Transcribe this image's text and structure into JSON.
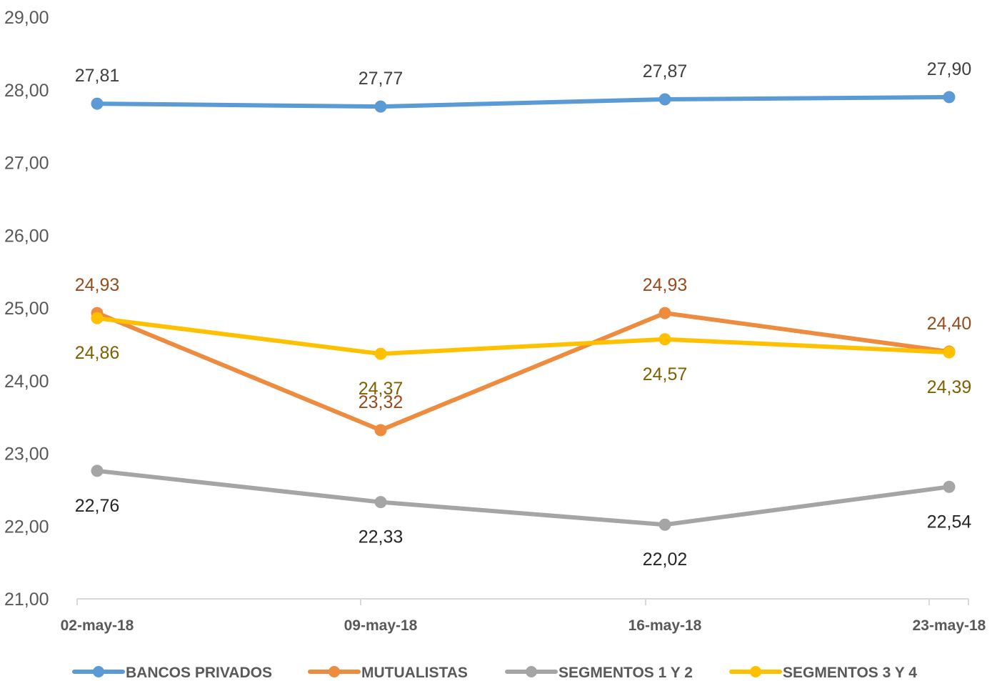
{
  "chart_data": {
    "type": "line",
    "title": "",
    "xlabel": "",
    "ylabel": "",
    "ylim": [
      21,
      29
    ],
    "y_ticks": [
      "21,00",
      "22,00",
      "23,00",
      "24,00",
      "25,00",
      "26,00",
      "27,00",
      "28,00",
      "29,00"
    ],
    "categories": [
      "02-may-18",
      "09-may-18",
      "16-may-18",
      "23-may-18"
    ],
    "grid": false,
    "legend_position": "bottom",
    "series": [
      {
        "name": "BANCOS PRIVADOS",
        "color": "#5B9BD5",
        "label_color": "#404040",
        "values": [
          27.81,
          27.77,
          27.87,
          27.9
        ],
        "labels": [
          "27,81",
          "27,77",
          "27,87",
          "27,90"
        ],
        "label_side": [
          "above",
          "above",
          "above",
          "above"
        ]
      },
      {
        "name": "MUTUALISTAS",
        "color": "#ED8B3F",
        "label_color": "#9C4A1A",
        "values": [
          24.93,
          23.32,
          24.93,
          24.4
        ],
        "labels": [
          "24,93",
          "23,32",
          "24,93",
          "24,40"
        ],
        "label_side": [
          "above",
          "above",
          "above",
          "above"
        ]
      },
      {
        "name": "SEGMENTOS 1 Y 2",
        "color": "#A5A5A5",
        "label_color": "#262626",
        "values": [
          22.76,
          22.33,
          22.02,
          22.54
        ],
        "labels": [
          "22,76",
          "22,33",
          "22,02",
          "22,54"
        ],
        "label_side": [
          "below",
          "below",
          "below",
          "below"
        ]
      },
      {
        "name": "SEGMENTOS 3 Y 4",
        "color": "#FFC000",
        "label_color": "#7F6000",
        "values": [
          24.86,
          24.37,
          24.57,
          24.39
        ],
        "labels": [
          "24,86",
          "24,37",
          "24,57",
          "24,39"
        ],
        "label_side": [
          "below",
          "below",
          "below",
          "below"
        ]
      }
    ]
  }
}
